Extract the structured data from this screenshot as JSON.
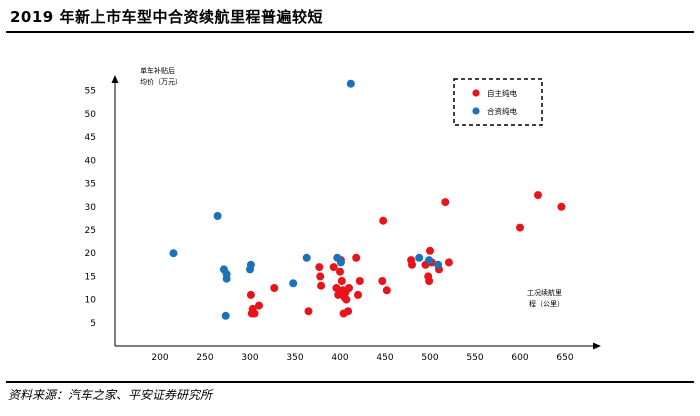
{
  "header": {
    "title": "2019 年新上市车型中合资续航里程普遍较短"
  },
  "footer": {
    "source": "资料来源：汽车之家、平安证券研究所"
  },
  "chart_data": {
    "type": "scatter",
    "title": "2019 年新上市车型中合资续航里程普遍较短",
    "ylabel_line1": "单车补贴后",
    "ylabel_line2": "均价（万元）",
    "xlabel_line1": "工况续航里",
    "xlabel_line2": "程（公里）",
    "xlim": [
      150,
      650
    ],
    "ylim": [
      0,
      60
    ],
    "x_ticks": [
      200,
      250,
      300,
      350,
      400,
      450,
      500,
      550,
      600,
      650
    ],
    "y_ticks": [
      5,
      10,
      15,
      20,
      25,
      30,
      35,
      40,
      45,
      50,
      55
    ],
    "grid": false,
    "legend_position": "top-right",
    "colors": {
      "domestic": "#e8141a",
      "joint": "#1a72b8"
    },
    "series": [
      {
        "name": "自主纯电",
        "color": "#e8141a",
        "points": [
          [
            301,
            11
          ],
          [
            302,
            7
          ],
          [
            303,
            8
          ],
          [
            305,
            7
          ],
          [
            310,
            8.7
          ],
          [
            327,
            12.5
          ],
          [
            365,
            7.5
          ],
          [
            377,
            17
          ],
          [
            378,
            15
          ],
          [
            379,
            13
          ],
          [
            393,
            17
          ],
          [
            396,
            12.5
          ],
          [
            398,
            11
          ],
          [
            400,
            16
          ],
          [
            401,
            18.5
          ],
          [
            402,
            14
          ],
          [
            403,
            12
          ],
          [
            404,
            7
          ],
          [
            405,
            10.5
          ],
          [
            406,
            11.5
          ],
          [
            407,
            10
          ],
          [
            409,
            7.5
          ],
          [
            410,
            12.5
          ],
          [
            418,
            19
          ],
          [
            420,
            11
          ],
          [
            422,
            14
          ],
          [
            447,
            14
          ],
          [
            448,
            27
          ],
          [
            452,
            12
          ],
          [
            479,
            18.5
          ],
          [
            480,
            17.5
          ],
          [
            495,
            17.5
          ],
          [
            498,
            15
          ],
          [
            499,
            14
          ],
          [
            500,
            20.5
          ],
          [
            502,
            18
          ],
          [
            510,
            16.5
          ],
          [
            517,
            31
          ],
          [
            521,
            18
          ],
          [
            600,
            25.5
          ],
          [
            620,
            32.5
          ],
          [
            646,
            30
          ]
        ]
      },
      {
        "name": "合资纯电",
        "color": "#1a72b8",
        "points": [
          [
            215,
            20
          ],
          [
            264,
            28
          ],
          [
            271,
            16.5
          ],
          [
            273,
            6.5
          ],
          [
            274,
            15.5
          ],
          [
            274,
            14.5
          ],
          [
            300,
            16.5
          ],
          [
            301,
            17.5
          ],
          [
            348,
            13.5
          ],
          [
            363,
            19
          ],
          [
            397,
            19
          ],
          [
            401,
            18
          ],
          [
            412,
            56.5
          ],
          [
            488,
            19
          ],
          [
            499,
            18.5
          ],
          [
            509,
            17.5
          ]
        ]
      }
    ]
  }
}
